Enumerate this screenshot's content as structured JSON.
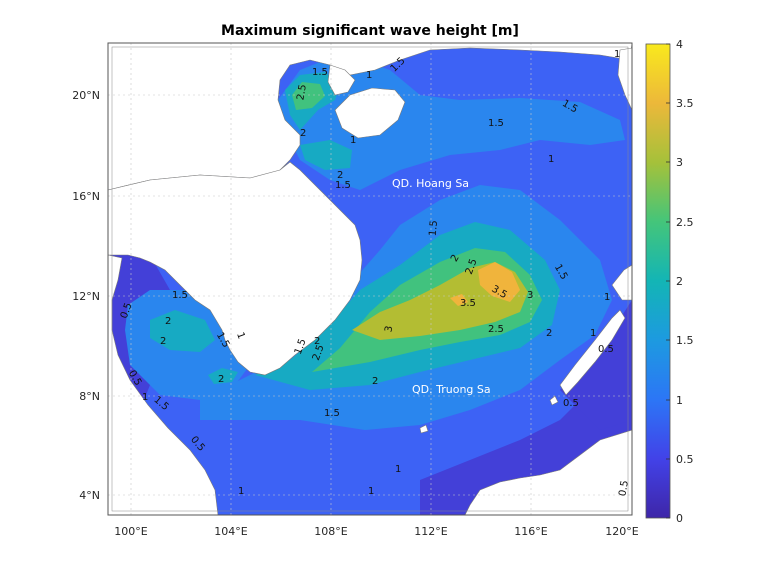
{
  "title": "Maximum significant wave height [m]",
  "colorbar": {
    "ticks": [
      "0",
      "0.5",
      "1",
      "1.5",
      "2",
      "2.5",
      "3",
      "3.5",
      "4"
    ],
    "stops": [
      "#3e26a8",
      "#4242e8",
      "#2c76f6",
      "#1d9ae0",
      "#13b5b5",
      "#44c57a",
      "#a5c13a",
      "#ecb83a",
      "#f9e91d"
    ]
  },
  "axes": {
    "lon_ticks": [
      "100°E",
      "104°E",
      "108°E",
      "112°E",
      "116°E",
      "120°E"
    ],
    "lat_ticks": [
      "20°N",
      "16°N",
      "12°N",
      "8°N",
      "4°N"
    ],
    "grid": true
  },
  "places": {
    "paracel": "QD. Hoang Sa",
    "spratly": "QD. Truong Sa"
  },
  "contour_labels": [
    "1",
    "1.5",
    "2",
    "2.5",
    "3",
    "3.5",
    "0.5"
  ],
  "map_data": {
    "type": "contour",
    "variable": "Maximum significant wave height",
    "unit": "m",
    "lon_range": [
      99,
      120.5
    ],
    "lat_range": [
      3,
      22
    ],
    "levels": [
      0.5,
      1,
      1.5,
      2,
      2.5,
      3,
      3.5
    ],
    "max_value_approx": 3.8
  }
}
